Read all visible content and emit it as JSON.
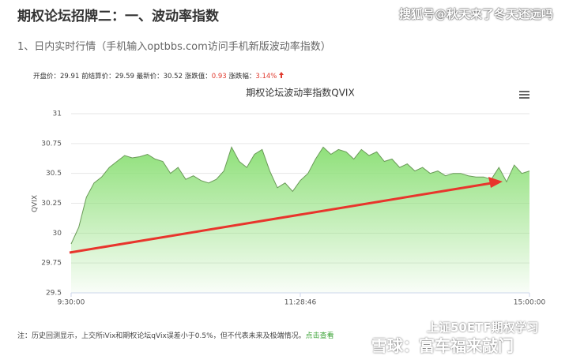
{
  "header": {
    "title": "期权论坛招牌二：一、波动率指数",
    "watermark": "搜狐号@秋天来了冬天还远吗"
  },
  "intro": "1、日内实时行情（手机输入optbbs.com访问手机新版波动率指数）",
  "stats": [
    {
      "label": "开盘价：",
      "value": "29.91"
    },
    {
      "label": "前结算价：",
      "value": "29.59"
    },
    {
      "label": "最新价：",
      "value": "30.52"
    },
    {
      "label": "涨跌值：",
      "value": "0.93"
    },
    {
      "label": "涨跌幅：",
      "value": "3.14%"
    }
  ],
  "chart_data": {
    "type": "area",
    "title": "期权论坛波动率指数QVIX",
    "y_label": "QVIX",
    "color": "#8fe07a",
    "line_color": "#6a9a58",
    "grid": true,
    "categories": [
      "9:30:00",
      null,
      null,
      null,
      null,
      null,
      null,
      null,
      null,
      null,
      null,
      null,
      null,
      null,
      null,
      null,
      null,
      null,
      null,
      null,
      null,
      null,
      null,
      null,
      null,
      null,
      null,
      null,
      null,
      null,
      "11:28:46",
      null,
      null,
      null,
      null,
      null,
      null,
      null,
      null,
      null,
      null,
      null,
      null,
      null,
      null,
      null,
      null,
      null,
      null,
      null,
      null,
      null,
      null,
      null,
      null,
      null,
      null,
      null,
      null,
      null,
      "15:00:00"
    ],
    "values": [
      29.91,
      30.05,
      30.3,
      30.42,
      30.47,
      30.55,
      30.6,
      30.65,
      30.63,
      30.64,
      30.66,
      30.62,
      30.6,
      30.5,
      30.55,
      30.45,
      30.48,
      30.44,
      30.42,
      30.45,
      30.52,
      30.72,
      30.6,
      30.55,
      30.66,
      30.7,
      30.52,
      30.38,
      30.42,
      30.35,
      30.44,
      30.5,
      30.62,
      30.72,
      30.66,
      30.7,
      30.68,
      30.62,
      30.7,
      30.65,
      30.68,
      30.6,
      30.62,
      30.55,
      30.58,
      30.52,
      30.55,
      30.5,
      30.52,
      30.48,
      30.5,
      30.5,
      30.48,
      30.47,
      30.47,
      30.45,
      30.55,
      30.43,
      30.57,
      30.5,
      30.52
    ],
    "ylim": [
      29.5,
      31
    ],
    "yticks": [
      29.5,
      29.75,
      30,
      30.25,
      30.5,
      30.75,
      31
    ]
  },
  "footer": {
    "note": "注：历史回测显示，上交所iVix和期权论坛qVix误差小于0.5%，但不代表未来及极端情况。",
    "link": "点击查看"
  },
  "watermark_bottom": [
    "上证50ETF期权学习",
    "雪球：富车福来敲门"
  ]
}
